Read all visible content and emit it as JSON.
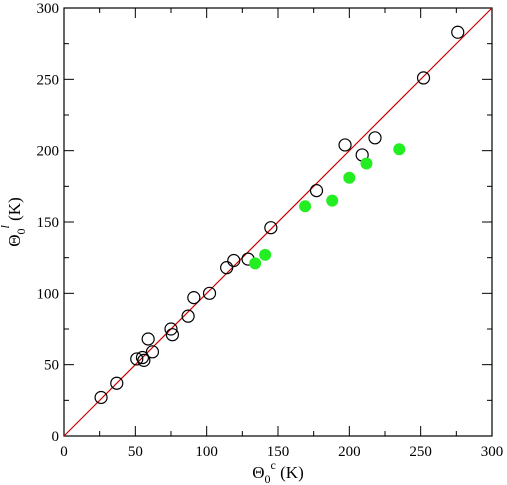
{
  "chart_data": {
    "type": "scatter",
    "xlabel": {
      "main": "Θ",
      "sub": "0",
      "sup": "c",
      "unit": " (K)"
    },
    "ylabel": {
      "main": "Θ",
      "sub": "0",
      "sup": "l",
      "unit": " (K)"
    },
    "xlim": [
      0,
      300
    ],
    "ylim": [
      0,
      300
    ],
    "xticks": [
      "0",
      "50",
      "100",
      "150",
      "200",
      "250",
      "300"
    ],
    "yticks": [
      "0",
      "50",
      "100",
      "150",
      "200",
      "250",
      "300"
    ],
    "grid": false,
    "reference_line": {
      "from": [
        0,
        0
      ],
      "to": [
        300,
        300
      ],
      "color": "#cc0000"
    },
    "series": [
      {
        "marker": "open-circle",
        "color": "#000000",
        "points": [
          [
            26,
            27
          ],
          [
            37,
            37
          ],
          [
            51,
            54
          ],
          [
            55,
            55
          ],
          [
            56,
            53
          ],
          [
            59,
            68
          ],
          [
            62,
            59
          ],
          [
            75,
            75
          ],
          [
            76,
            71
          ],
          [
            87,
            84
          ],
          [
            91,
            97
          ],
          [
            102,
            100
          ],
          [
            114,
            118
          ],
          [
            119,
            123
          ],
          [
            129,
            124
          ],
          [
            145,
            146
          ],
          [
            177,
            172
          ],
          [
            197,
            204
          ],
          [
            209,
            197
          ],
          [
            218,
            209
          ],
          [
            252,
            251
          ],
          [
            276,
            283
          ]
        ]
      },
      {
        "marker": "filled-circle",
        "color": "#22ee22",
        "points": [
          [
            134,
            121
          ],
          [
            141,
            127
          ],
          [
            169,
            161
          ],
          [
            188,
            165
          ],
          [
            200,
            181
          ],
          [
            212,
            191
          ],
          [
            235,
            201
          ]
        ]
      }
    ]
  }
}
